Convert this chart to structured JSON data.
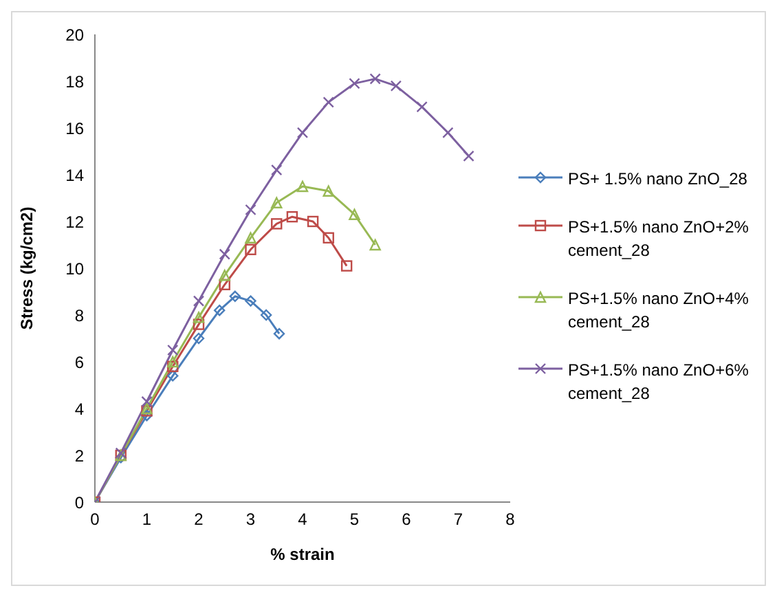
{
  "chart_data": {
    "type": "line",
    "xlabel": "% strain",
    "ylabel": "Stress (kg/cm2)",
    "xlim": [
      0,
      8
    ],
    "xticks": [
      0,
      1,
      2,
      3,
      4,
      5,
      6,
      7,
      8
    ],
    "ylim": [
      0,
      20
    ],
    "yticks": [
      0,
      2,
      4,
      6,
      8,
      10,
      12,
      14,
      16,
      18,
      20
    ],
    "grid": false,
    "legend": "right",
    "series": [
      {
        "name": "PS+ 1.5% nano ZnO_28",
        "color": "#4a7ebb",
        "marker": "diamond",
        "x": [
          0,
          0.5,
          1,
          1.5,
          2,
          2.4,
          2.7,
          3.0,
          3.3,
          3.55
        ],
        "values": [
          0,
          1.9,
          3.7,
          5.4,
          7.0,
          8.2,
          8.8,
          8.6,
          8.0,
          7.2
        ]
      },
      {
        "name": "PS+1.5% nano ZnO+2% cement_28",
        "color": "#be4b48",
        "marker": "square",
        "x": [
          0,
          0.5,
          1,
          1.5,
          2,
          2.5,
          3,
          3.5,
          3.8,
          4.2,
          4.5,
          4.85
        ],
        "values": [
          0,
          2,
          3.9,
          5.8,
          7.6,
          9.3,
          10.8,
          11.9,
          12.2,
          12.0,
          11.3,
          10.1
        ]
      },
      {
        "name": "PS+1.5% nano ZnO+4% cement_28",
        "color": "#98b954",
        "marker": "triangle",
        "x": [
          0,
          0.5,
          1,
          1.5,
          2,
          2.5,
          3,
          3.5,
          4.0,
          4.5,
          5.0,
          5.4
        ],
        "values": [
          0,
          2,
          4,
          6,
          7.9,
          9.7,
          11.3,
          12.8,
          13.5,
          13.3,
          12.3,
          11.0
        ]
      },
      {
        "name": "PS+1.5% nano ZnO+6% cement_28",
        "color": "#7d60a0",
        "marker": "cross",
        "x": [
          0,
          0.5,
          1,
          1.5,
          2,
          2.5,
          3,
          3.5,
          4,
          4.5,
          5,
          5.4,
          5.8,
          6.3,
          6.8,
          7.2
        ],
        "values": [
          0,
          2.1,
          4.3,
          6.5,
          8.6,
          10.6,
          12.5,
          14.2,
          15.8,
          17.1,
          17.9,
          18.1,
          17.8,
          16.9,
          15.8,
          14.8
        ]
      }
    ]
  }
}
